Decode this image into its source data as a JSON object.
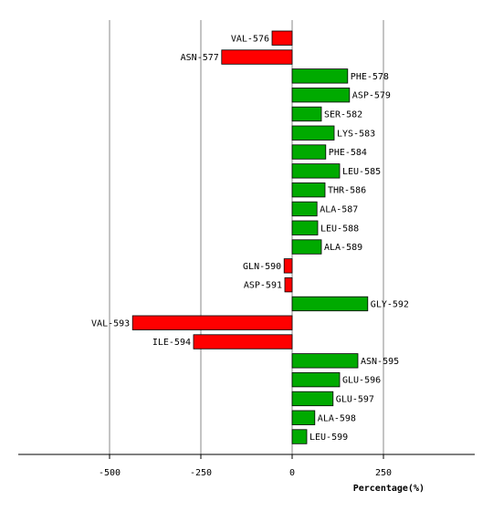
{
  "chart_data": {
    "type": "bar",
    "orientation": "horizontal",
    "xlabel": "Percentage(%)",
    "xlim": [
      -750,
      500
    ],
    "xticks": [
      -500,
      -250,
      0,
      250
    ],
    "xtick_labels": [
      "-500",
      "-250",
      "0",
      "250"
    ],
    "grid": true,
    "colors": {
      "positive": "#00aa00",
      "negative": "#ff0000",
      "grid": "#888888",
      "outline": "#000000"
    },
    "categories": [
      "VAL-576",
      "ASN-577",
      "PHE-578",
      "ASP-579",
      "SER-582",
      "LYS-583",
      "PHE-584",
      "LEU-585",
      "THR-586",
      "ALA-587",
      "LEU-588",
      "ALA-589",
      "GLN-590",
      "ASP-591",
      "GLY-592",
      "VAL-593",
      "ILE-594",
      "ASN-595",
      "GLU-596",
      "GLU-597",
      "ALA-598",
      "LEU-599"
    ],
    "values": [
      -55,
      -193,
      152,
      157,
      80,
      115,
      92,
      130,
      90,
      68,
      70,
      80,
      -22,
      -20,
      207,
      -437,
      -270,
      180,
      130,
      112,
      62,
      40
    ]
  }
}
